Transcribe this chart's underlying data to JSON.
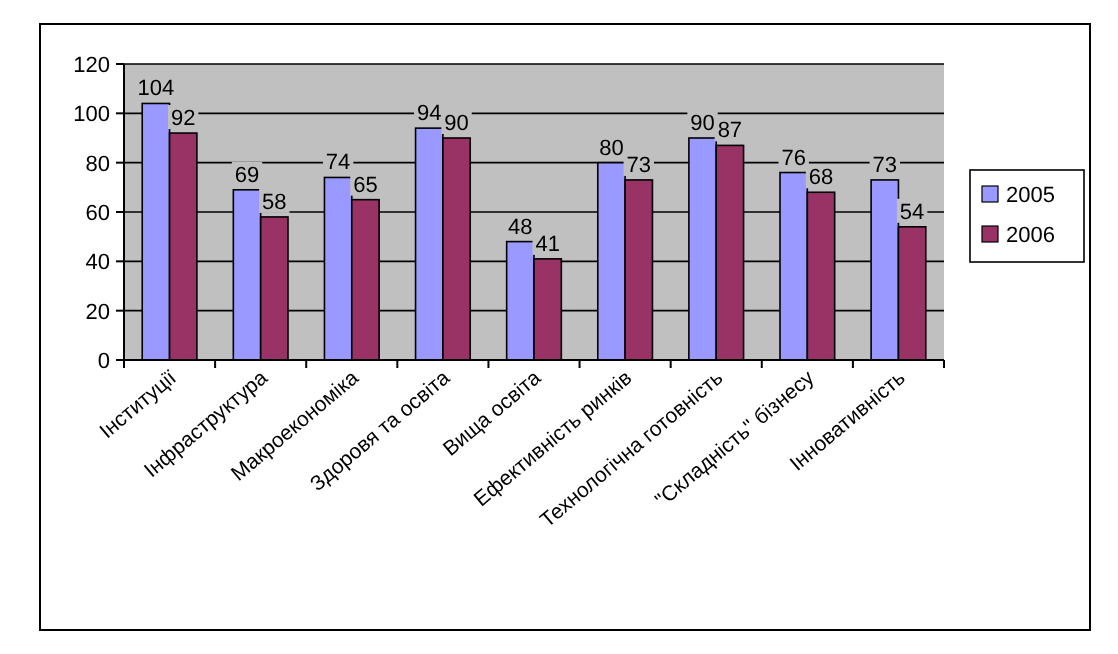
{
  "chart_data": {
    "type": "bar",
    "categories": [
      "Інституції",
      "Інфраструктура",
      "Макроекономіка",
      "Здоровя та освіта",
      "Вища освіта",
      "Ефективність ринків",
      "Технологічна готовність",
      "\"Складність\" бізнесу",
      "Інновативність"
    ],
    "series": [
      {
        "name": "2005",
        "color": "#9999ff",
        "values": [
          104,
          69,
          74,
          94,
          48,
          80,
          90,
          76,
          73
        ]
      },
      {
        "name": "2006",
        "color": "#993366",
        "values": [
          92,
          58,
          65,
          90,
          41,
          73,
          87,
          68,
          54
        ]
      }
    ],
    "ylim": [
      0,
      120
    ],
    "yticks": [
      0,
      20,
      40,
      60,
      80,
      100,
      120
    ],
    "grid": "y",
    "legend": "right",
    "data_labels": true
  }
}
